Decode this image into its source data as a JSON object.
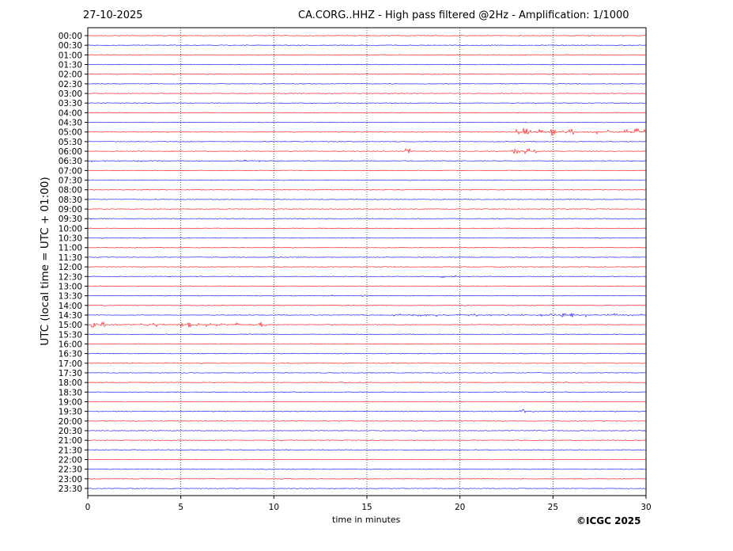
{
  "header": {
    "date": "27-10-2025",
    "title": "CA.CORG..HHZ - High pass filtered @2Hz - Amplification: 1/1000"
  },
  "footer": {
    "copyright": "©ICGC 2025"
  },
  "chart_data": {
    "type": "line",
    "title": "CA.CORG..HHZ - High pass filtered @2Hz - Amplification: 1/1000",
    "xlabel": "time in minutes",
    "ylabel": "UTC (local time = UTC + 01:00)",
    "xlim": [
      0,
      30
    ],
    "xticks": [
      "0",
      "5",
      "10",
      "15",
      "20",
      "25",
      "30"
    ],
    "grid": "vertical dotted at 5-minute intervals",
    "row_labels": [
      "00:00",
      "00:30",
      "01:00",
      "01:30",
      "02:00",
      "02:30",
      "03:00",
      "03:30",
      "04:00",
      "04:30",
      "05:00",
      "05:30",
      "06:00",
      "06:30",
      "07:00",
      "07:30",
      "08:00",
      "08:30",
      "09:00",
      "09:30",
      "10:00",
      "10:30",
      "11:00",
      "11:30",
      "12:00",
      "12:30",
      "13:00",
      "13:30",
      "14:00",
      "14:30",
      "15:00",
      "15:30",
      "16:00",
      "16:30",
      "17:00",
      "17:30",
      "18:00",
      "18:30",
      "19:00",
      "19:30",
      "20:00",
      "20:30",
      "21:00",
      "21:30",
      "22:00",
      "22:30",
      "23:00",
      "23:30"
    ],
    "trace_colors": [
      "#ff0000",
      "#0000ff"
    ],
    "events": [
      {
        "row": "05:00",
        "start_min": 23.0,
        "end_min": 30.0,
        "amplitude": 0.4,
        "peaks": [
          23.5,
          25.0,
          29.5
        ]
      },
      {
        "row": "06:00",
        "start_min": 22.8,
        "end_min": 24.2,
        "amplitude": 0.25,
        "peaks": [
          17.2,
          23.0,
          23.6,
          24.0
        ]
      },
      {
        "row": "06:30",
        "start_min": 0.0,
        "end_min": 4.8,
        "amplitude": 0.12,
        "peaks": [
          8.5,
          9.2
        ]
      },
      {
        "row": "12:30",
        "start_min": 18.5,
        "end_min": 20.2,
        "amplitude": 0.15,
        "peaks": [
          19.0
        ]
      },
      {
        "row": "13:30",
        "start_min": 12.5,
        "end_min": 13.5,
        "amplitude": 0.1,
        "peaks": [
          14.8
        ]
      },
      {
        "row": "14:30",
        "start_min": 15.5,
        "end_min": 30.0,
        "amplitude": 0.2,
        "peaks": [
          25.0,
          25.6,
          26.0
        ]
      },
      {
        "row": "15:00",
        "start_min": 0.0,
        "end_min": 9.6,
        "amplitude": 0.25,
        "peaks": [
          0.3,
          0.8,
          5.0,
          5.5,
          9.3
        ]
      },
      {
        "row": "19:30",
        "start_min": 23.2,
        "end_min": 24.6,
        "amplitude": 0.2,
        "peaks": [
          23.4
        ]
      }
    ]
  }
}
